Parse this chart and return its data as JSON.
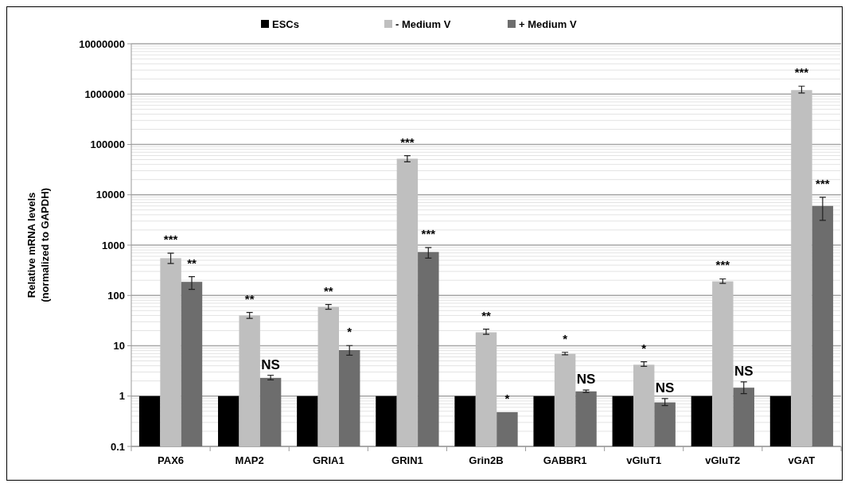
{
  "chart_data": {
    "type": "bar",
    "ylabel": "Relative mRNA levels\n(normalized to GAPDH)",
    "categories": [
      "PAX6",
      "MAP2",
      "GRIA1",
      "GRIN1",
      "Grin2B",
      "GABBR1",
      "vGluT1",
      "vGluT2",
      "vGAT"
    ],
    "series": [
      {
        "name": "ESCs",
        "color": "#000000",
        "values": [
          1,
          1,
          1,
          1,
          1,
          1,
          1,
          1,
          1
        ]
      },
      {
        "name": "- Medium V",
        "color": "#bfbfbf",
        "values": [
          550,
          40,
          59,
          52000,
          18.5,
          6.9,
          4.2,
          190,
          1200000
        ],
        "errors": [
          [
            430,
            690
          ],
          [
            35,
            46
          ],
          [
            53,
            66
          ],
          [
            45000,
            60000
          ],
          [
            16.9,
            21.4
          ],
          [
            6.6,
            7.4
          ],
          [
            3.9,
            4.8
          ],
          [
            173,
            213
          ],
          [
            1050000,
            1440000
          ]
        ]
      },
      {
        "name": "+ Medium V",
        "color": "#6d6d6d",
        "values": [
          186,
          2.3,
          8.2,
          730,
          0.48,
          1.24,
          0.75,
          1.47,
          6000
        ],
        "errors": [
          [
            132,
            237
          ],
          [
            2.1,
            2.6
          ],
          [
            6.5,
            10.1
          ],
          [
            550,
            890
          ],
          null,
          [
            1.18,
            1.32
          ],
          [
            0.65,
            0.89
          ],
          [
            1.12,
            1.92
          ],
          [
            3100,
            8900
          ]
        ]
      }
    ],
    "log": true,
    "ylim": [
      0.1,
      10000000
    ],
    "yticks": [
      0.1,
      1,
      10,
      100,
      1000,
      10000,
      100000,
      1000000,
      10000000
    ],
    "grid": true,
    "legend": "top",
    "annotations": [
      "***",
      "**",
      "**",
      "NS",
      "**",
      "*",
      "***",
      "***",
      "**",
      "*",
      "*",
      "NS",
      "*",
      "NS",
      "***",
      "NS",
      "***",
      "***"
    ]
  }
}
